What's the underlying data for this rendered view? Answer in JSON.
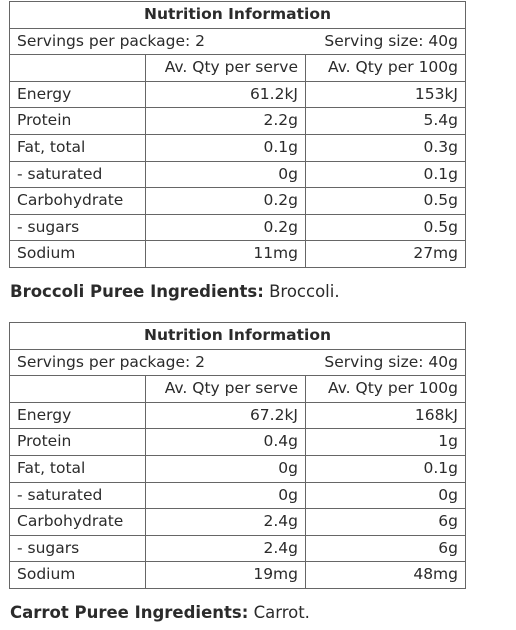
{
  "panels": [
    {
      "title": "Nutrition Information",
      "servings_per_package": "Servings per package: 2",
      "serving_size": "Serving size: 40g",
      "col_per_serve": "Av. Qty per serve",
      "col_per_100g": "Av. Qty per 100g",
      "rows": [
        {
          "label": "Energy",
          "per_serve": "61.2kJ",
          "per_100g": "153kJ"
        },
        {
          "label": "Protein",
          "per_serve": "2.2g",
          "per_100g": "5.4g"
        },
        {
          "label": "Fat, total",
          "per_serve": "0.1g",
          "per_100g": "0.3g"
        },
        {
          "label": "- saturated",
          "per_serve": "0g",
          "per_100g": "0.1g"
        },
        {
          "label": "Carbohydrate",
          "per_serve": "0.2g",
          "per_100g": "0.5g"
        },
        {
          "label": "- sugars",
          "per_serve": "0.2g",
          "per_100g": "0.5g"
        },
        {
          "label": "Sodium",
          "per_serve": "11mg",
          "per_100g": "27mg"
        }
      ],
      "ingredients_label": "Broccoli Puree Ingredients:",
      "ingredients_text": " Broccoli."
    },
    {
      "title": "Nutrition Information",
      "servings_per_package": "Servings per package: 2",
      "serving_size": "Serving size: 40g",
      "col_per_serve": "Av. Qty per serve",
      "col_per_100g": "Av. Qty per 100g",
      "rows": [
        {
          "label": "Energy",
          "per_serve": "67.2kJ",
          "per_100g": "168kJ"
        },
        {
          "label": "Protein",
          "per_serve": "0.4g",
          "per_100g": "1g"
        },
        {
          "label": "Fat, total",
          "per_serve": "0g",
          "per_100g": "0.1g"
        },
        {
          "label": "- saturated",
          "per_serve": "0g",
          "per_100g": "0g"
        },
        {
          "label": "Carbohydrate",
          "per_serve": "2.4g",
          "per_100g": "6g"
        },
        {
          "label": "- sugars",
          "per_serve": "2.4g",
          "per_100g": "6g"
        },
        {
          "label": "Sodium",
          "per_serve": "19mg",
          "per_100g": "48mg"
        }
      ],
      "ingredients_label": "Carrot Puree Ingredients:",
      "ingredients_text": " Carrot."
    }
  ]
}
